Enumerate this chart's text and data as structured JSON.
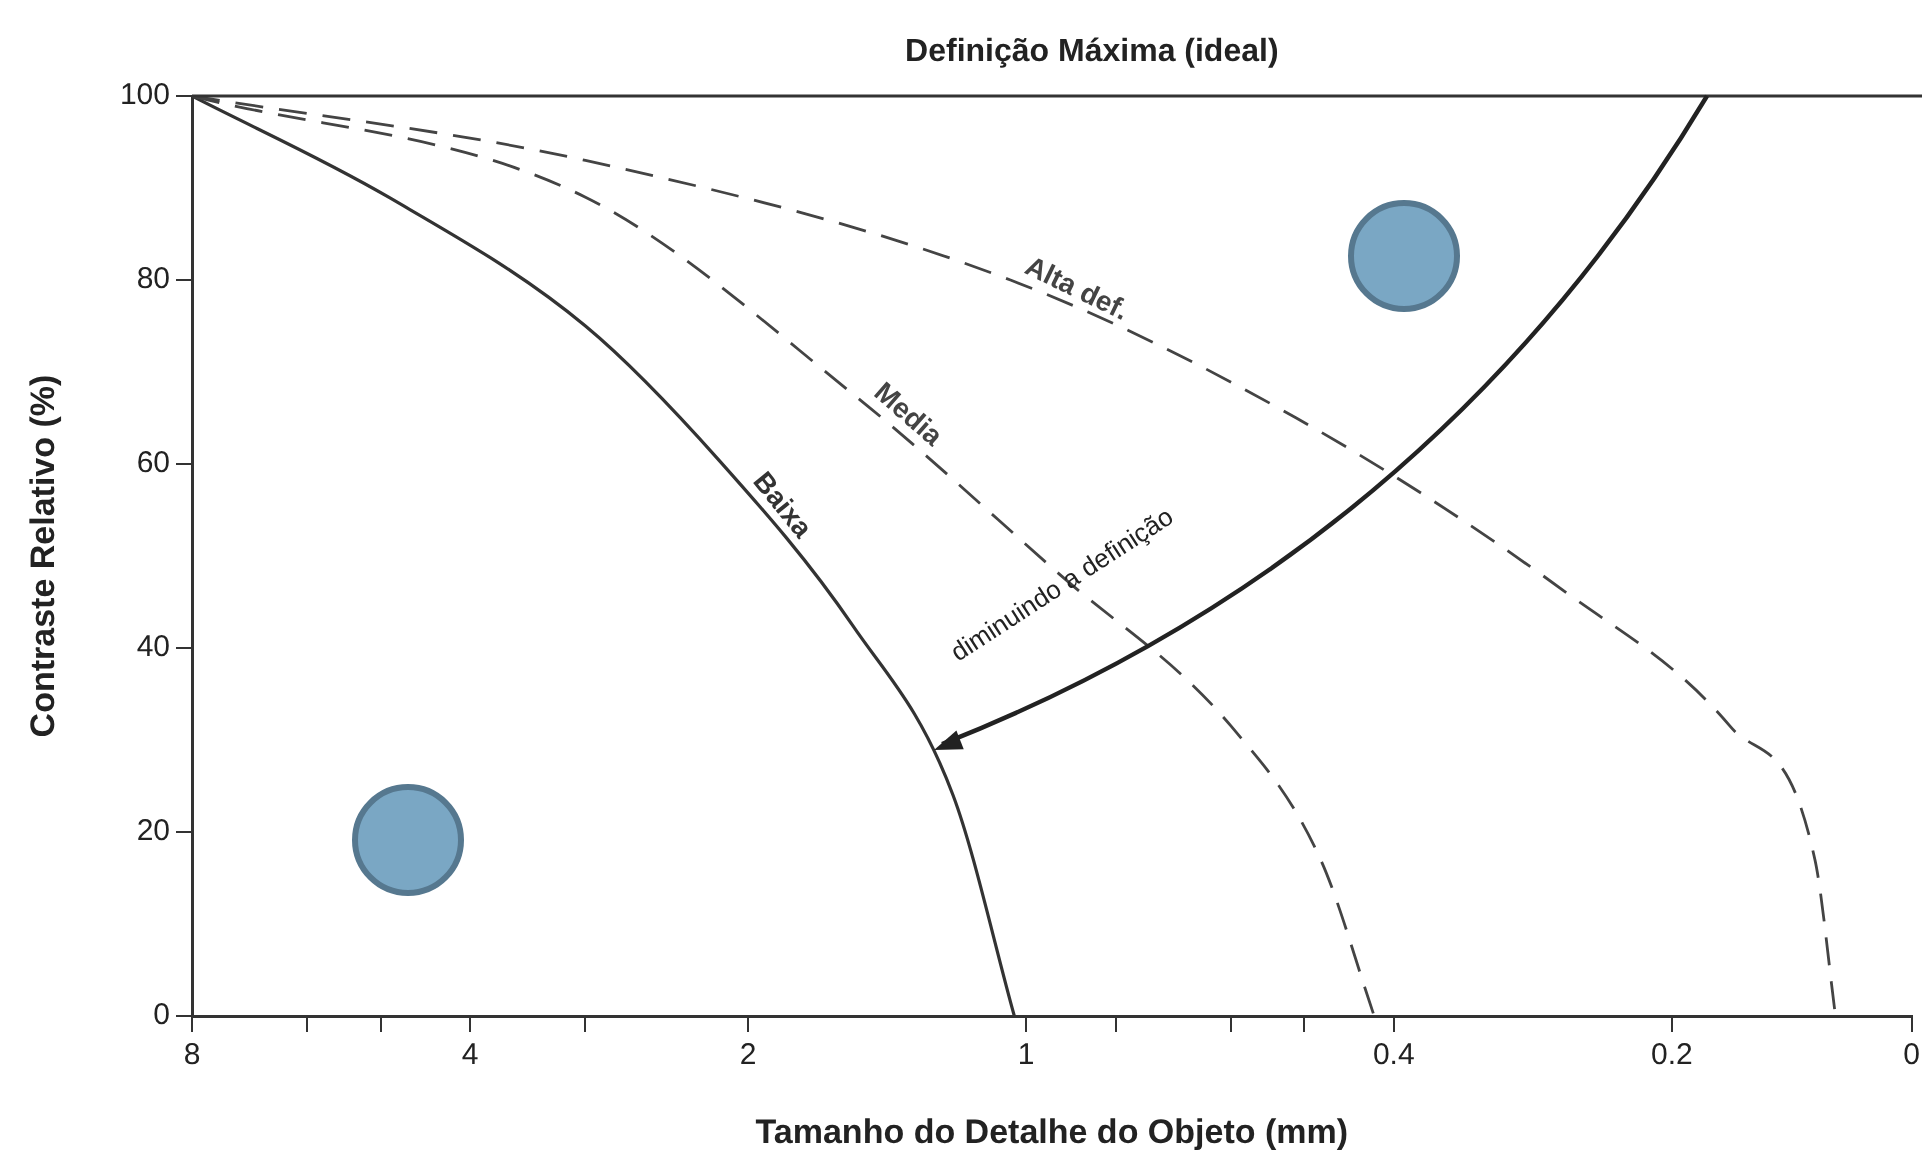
{
  "chart_data": {
    "type": "line",
    "xlabel": "Tamanho do Detalhe do Objeto (mm)",
    "ylabel": "Contraste Relativo (%)",
    "log": "x",
    "xlim": [
      8,
      0.11
    ],
    "ylim": [
      0,
      100
    ],
    "xticks": [
      8,
      {
        "value": 6,
        "label": null
      },
      {
        "value": 5,
        "label": null
      },
      4,
      {
        "value": 3,
        "label": null
      },
      2,
      1,
      {
        "value": 0.8,
        "label": null
      },
      {
        "value": 0.6,
        "label": null
      },
      {
        "value": 0.5,
        "label": null
      },
      0.4,
      0.2,
      {
        "value": 0.11,
        "label": "0"
      }
    ],
    "yticks": [
      0,
      20,
      40,
      60,
      80,
      100
    ],
    "grid": false,
    "legend": false,
    "marker": "none",
    "ref_lines": [
      {
        "axis": "y",
        "value": 100,
        "label": "Definição Máxima (ideal)",
        "color": "#333333"
      }
    ],
    "annotations": [
      "diminuindo a definição"
    ],
    "series": [
      {
        "name": "Alta def.",
        "color": "#444444",
        "line_style": "dashed",
        "x": [
          8,
          3,
          1.04,
          0.51,
          0.26,
          0.173,
          0.14,
          0.133
        ],
        "values": [
          100,
          93,
          80,
          65,
          46,
          31.5,
          17,
          0
        ]
      },
      {
        "name": "Media",
        "color": "#444444",
        "line_style": "dashed",
        "x": [
          8,
          3,
          1.54,
          0.92,
          0.6,
          0.48,
          0.42
        ],
        "values": [
          100,
          89,
          67.6,
          48,
          31.5,
          17,
          0
        ]
      },
      {
        "name": "Baixa",
        "color": "#333333",
        "line_style": "solid",
        "x": [
          8,
          4.9,
          3,
          2.15,
          1.54,
          1.2,
          1.03
        ],
        "values": [
          100,
          89,
          75,
          60.4,
          42.4,
          24,
          0
        ]
      }
    ]
  }
}
